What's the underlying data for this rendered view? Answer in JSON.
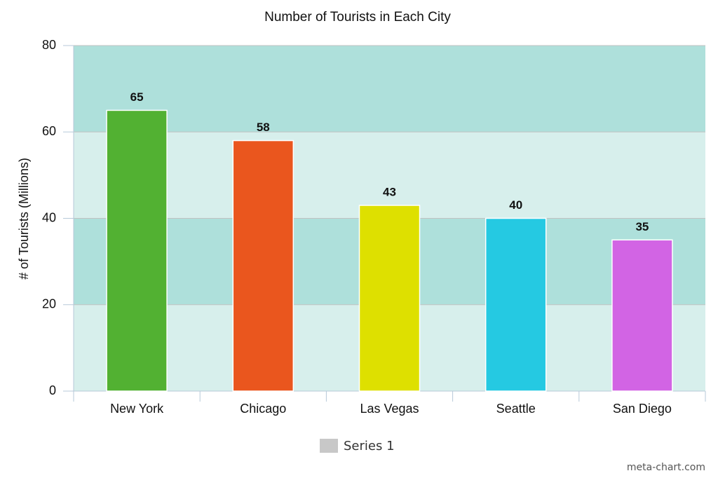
{
  "chart_data": {
    "type": "bar",
    "title": "Number of Tourists in Each City",
    "y_label": "# of Tourists (Millions)",
    "categories": [
      "New York",
      "Chicago",
      "Las Vegas",
      "Seattle",
      "San Diego"
    ],
    "series": [
      {
        "name": "Series 1",
        "color": "#c8c8c8",
        "bar_colors": [
          "#52b132",
          "#ea561e",
          "#dee000",
          "#25c9e2",
          "#d264e4"
        ],
        "values": [
          65,
          58,
          43,
          40,
          35
        ]
      }
    ],
    "ylim": [
      0,
      80
    ],
    "yticks": [
      0,
      20,
      40,
      60,
      80
    ],
    "grid": true,
    "legend": "bottom",
    "watermark": "meta-chart.com"
  }
}
